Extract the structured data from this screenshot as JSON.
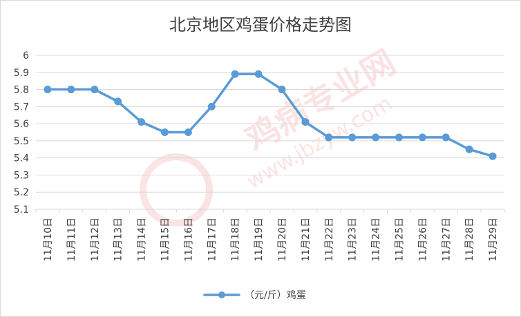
{
  "chart_data": {
    "type": "line",
    "title": "北京地区鸡蛋价格走势图",
    "categories": [
      "11月10日",
      "11月11日",
      "11月12日",
      "11月13日",
      "11月14日",
      "11月15日",
      "11月16日",
      "11月17日",
      "11月18日",
      "11月19日",
      "11月20日",
      "11月21日",
      "11月22日",
      "11月23日",
      "11月24日",
      "11月25日",
      "11月26日",
      "11月27日",
      "11月28日",
      "11月29日"
    ],
    "series": [
      {
        "name": "（元/斤）鸡蛋",
        "values": [
          5.8,
          5.8,
          5.8,
          5.73,
          5.61,
          5.55,
          5.55,
          5.7,
          5.89,
          5.89,
          5.8,
          5.61,
          5.52,
          5.52,
          5.52,
          5.52,
          5.52,
          5.52,
          5.45,
          5.41
        ],
        "color": "#5b9bd5"
      }
    ],
    "ylim": [
      5.1,
      6
    ],
    "yticks": [
      "5.1",
      "5.2",
      "5.3",
      "5.4",
      "5.5",
      "5.6",
      "5.7",
      "5.8",
      "5.9",
      "6"
    ],
    "grid": true,
    "legend": "bottom",
    "watermark": "鸡病专业网 www.jbzyw.com"
  }
}
